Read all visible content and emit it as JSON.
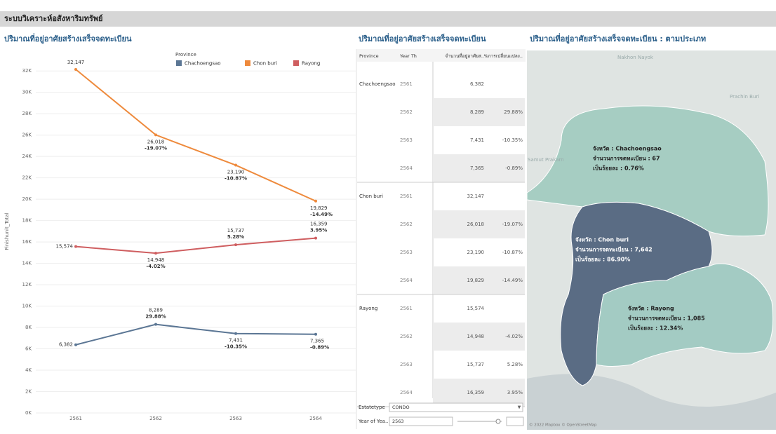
{
  "header": {
    "title": "ระบบวิเคราะห์อสังหาริมทรัพย์"
  },
  "chart_data": {
    "type": "line",
    "title": "ปริมาณที่อยู่อาศัยสร้างเสร็จจดทะเบียน",
    "y_label": "Finishunit_Total",
    "legend_title": "Province",
    "legend": "top",
    "categories": [
      "2561",
      "2562",
      "2563",
      "2564"
    ],
    "series": [
      {
        "name": "Chachoengsao",
        "color": "#5b7694",
        "values": [
          6382,
          8289,
          7431,
          7365
        ],
        "value_labels": [
          "6,382",
          "8,289",
          "7,431",
          "7,365"
        ],
        "change_labels": [
          null,
          "29.88%",
          "-10.35%",
          "-0.89%"
        ]
      },
      {
        "name": "Chon buri",
        "color": "#ee8a3c",
        "values": [
          32147,
          26018,
          23190,
          19829
        ],
        "value_labels": [
          "32,147",
          "26,018",
          "23,190",
          "19,829"
        ],
        "change_labels": [
          null,
          "-19.07%",
          "-10.87%",
          "-14.49%"
        ]
      },
      {
        "name": "Rayong",
        "color": "#cf5e60",
        "values": [
          15574,
          14948,
          15737,
          16359
        ],
        "value_labels": [
          "15,574",
          "14,948",
          "15,737",
          "16,359"
        ],
        "change_labels": [
          null,
          "-4.02%",
          "5.28%",
          "3.95%"
        ]
      }
    ],
    "ylim": [
      0,
      33000
    ],
    "yticks": [
      {
        "value": 0,
        "label": "0K"
      },
      {
        "value": 2000,
        "label": "2K"
      },
      {
        "value": 4000,
        "label": "4K"
      },
      {
        "value": 6000,
        "label": "6K"
      },
      {
        "value": 8000,
        "label": "8K"
      },
      {
        "value": 10000,
        "label": "10K"
      },
      {
        "value": 12000,
        "label": "12K"
      },
      {
        "value": 14000,
        "label": "14K"
      },
      {
        "value": 16000,
        "label": "16K"
      },
      {
        "value": 18000,
        "label": "18K"
      },
      {
        "value": 20000,
        "label": "20K"
      },
      {
        "value": 22000,
        "label": "22K"
      },
      {
        "value": 24000,
        "label": "24K"
      },
      {
        "value": 26000,
        "label": "26K"
      },
      {
        "value": 28000,
        "label": "28K"
      },
      {
        "value": 30000,
        "label": "30K"
      },
      {
        "value": 32000,
        "label": "32K"
      }
    ],
    "grid": true
  },
  "table": {
    "title": "ปริมาณที่อยู่อาศัยสร้างเสร็จจดทะเบียน",
    "headers": [
      "Province",
      "Year Th",
      "จำนวนที่อยู่อาศัยส..",
      "%การเปลี่ยนแปลง.."
    ],
    "groups": [
      {
        "province": "Chachoengsao",
        "rows": [
          {
            "year": "2561",
            "value": "6,382"
          },
          {
            "year": "2562",
            "value": "8,289",
            "change": "29.88%"
          },
          {
            "year": "2563",
            "value": "7,431",
            "change": "-10.35%"
          },
          {
            "year": "2564",
            "value": "7,365",
            "change": "-0.89%"
          }
        ]
      },
      {
        "province": "Chon buri",
        "rows": [
          {
            "year": "2561",
            "value": "32,147"
          },
          {
            "year": "2562",
            "value": "26,018",
            "change": "-19.07%"
          },
          {
            "year": "2563",
            "value": "23,190",
            "change": "-10.87%"
          },
          {
            "year": "2564",
            "value": "19,829",
            "change": "-14.49%"
          }
        ]
      },
      {
        "province": "Rayong",
        "rows": [
          {
            "year": "2561",
            "value": "15,574"
          },
          {
            "year": "2562",
            "value": "14,948",
            "change": "-4.02%"
          },
          {
            "year": "2563",
            "value": "15,737",
            "change": "5.28%"
          },
          {
            "year": "2564",
            "value": "16,359",
            "change": "3.95%"
          }
        ]
      }
    ]
  },
  "filters": [
    {
      "label": "Estatetype",
      "value": "CONDO"
    },
    {
      "label": "Year of Yea..",
      "value": "2563"
    }
  ],
  "map": {
    "title": "ปริมาณที่อยู่อาศัยสร้างเสร็จจดทะเบียน : ตามประเภท",
    "places": [
      "Nakhon Nayok",
      "Prachin Buri",
      "Samut Prakarn"
    ],
    "regions": [
      {
        "province": "จังหวัด : Chachoengsao",
        "count": "จำนวนการจดทะเบียน : 67",
        "percent": "เป็นร้อยละ : 0.76%",
        "color": "#a6cdc2"
      },
      {
        "province": "จังหวัด : Chon buri",
        "count": "จำนวนการจดทะเบียน : 7,642",
        "percent": "เป็นร้อยละ : 86.90%",
        "color": "#5a6c84"
      },
      {
        "province": "จังหวัด : Rayong",
        "count": "จำนวนการจดทะเบียน : 1,085",
        "percent": "เป็นร้อยละ : 12.34%",
        "color": "#a3cbc3"
      }
    ],
    "attribution": "© 2022 Mapbox © OpenStreetMap"
  }
}
